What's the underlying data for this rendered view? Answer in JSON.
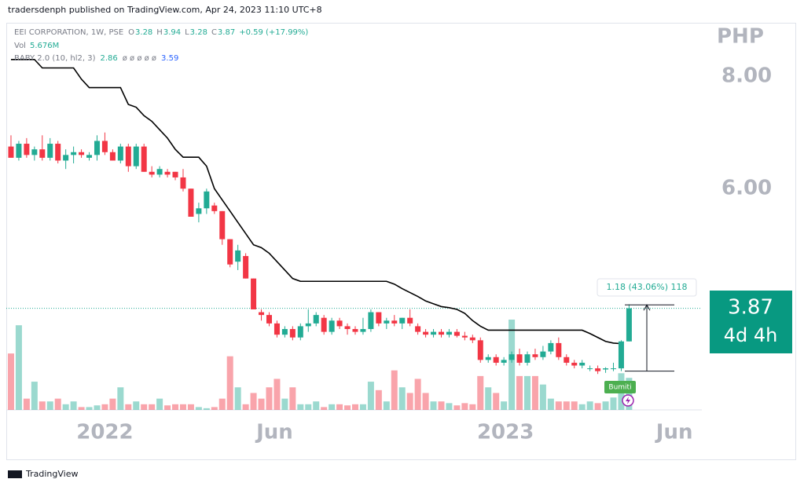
{
  "header": {
    "publisher": "tradersdenph published on TradingView.com, Apr 24, 2023 11:10 UTC+8"
  },
  "footer": {
    "brand": "TradingView"
  },
  "chart_data": {
    "type": "candlestick",
    "symbol": "EEI CORPORATION, 1W, PSE",
    "legend": [
      {
        "key": "O",
        "value": 3.28
      },
      {
        "key": "H",
        "value": 3.94
      },
      {
        "key": "L",
        "value": 3.28
      },
      {
        "key": "C",
        "value": 3.87
      }
    ],
    "change": "+0.59 (+17.99%)",
    "volume_legend": {
      "key": "Vol",
      "value": "5.676M"
    },
    "indicator_legend": {
      "name": "BABY 2.0 (10, hl2, 3)",
      "value": 2.86,
      "empty": "ø ø ø ø ø",
      "last": 3.59
    },
    "currency": "PHP",
    "up_color": "#22ab94",
    "down_color": "#f23645",
    "line_color": "#000000",
    "ylim": [
      2.06,
      8.94
    ],
    "yticks": [
      {
        "value": 6,
        "label": "6.00"
      },
      {
        "value": 8,
        "label": "8.00"
      }
    ],
    "xlim": [
      -0.6,
      88.3
    ],
    "xticks": [
      {
        "value": 12.0,
        "label": "2022"
      },
      {
        "value": 33.7,
        "label": "Jun"
      },
      {
        "value": 63.2,
        "label": "2023"
      },
      {
        "value": 84.8,
        "label": "Jun"
      }
    ],
    "candles": [
      [
        6.75,
        6.95,
        6.55,
        6.55
      ],
      [
        6.55,
        6.85,
        6.5,
        6.8
      ],
      [
        6.8,
        6.9,
        6.55,
        6.6
      ],
      [
        6.6,
        6.75,
        6.5,
        6.7
      ],
      [
        6.7,
        6.95,
        6.5,
        6.55
      ],
      [
        6.55,
        6.9,
        6.5,
        6.8
      ],
      [
        6.8,
        6.85,
        6.45,
        6.5
      ],
      [
        6.5,
        6.7,
        6.35,
        6.6
      ],
      [
        6.6,
        6.75,
        6.45,
        6.65
      ],
      [
        6.65,
        6.7,
        6.55,
        6.6
      ],
      [
        6.55,
        6.65,
        6.5,
        6.6
      ],
      [
        6.6,
        6.95,
        6.5,
        6.85
      ],
      [
        6.85,
        7.0,
        6.6,
        6.65
      ],
      [
        6.65,
        6.7,
        6.5,
        6.5
      ],
      [
        6.5,
        6.8,
        6.45,
        6.75
      ],
      [
        6.75,
        6.8,
        6.3,
        6.4
      ],
      [
        6.4,
        6.8,
        6.35,
        6.75
      ],
      [
        6.75,
        6.8,
        6.3,
        6.3
      ],
      [
        6.3,
        6.4,
        6.2,
        6.25
      ],
      [
        6.25,
        6.4,
        6.2,
        6.35
      ],
      [
        6.3,
        6.35,
        6.2,
        6.25
      ],
      [
        6.3,
        6.3,
        6.15,
        6.2
      ],
      [
        6.2,
        6.35,
        5.95,
        6.0
      ],
      [
        6.0,
        6.0,
        5.5,
        5.5
      ],
      [
        5.55,
        5.75,
        5.4,
        5.65
      ],
      [
        5.65,
        6.0,
        5.55,
        5.95
      ],
      [
        5.7,
        5.75,
        5.55,
        5.6
      ],
      [
        5.6,
        5.6,
        5.0,
        5.1
      ],
      [
        5.1,
        5.1,
        4.6,
        4.65
      ],
      [
        4.7,
        5.0,
        4.55,
        4.9
      ],
      [
        4.8,
        4.85,
        4.4,
        4.4
      ],
      [
        4.4,
        4.4,
        3.85,
        3.85
      ],
      [
        3.8,
        3.85,
        3.65,
        3.75
      ],
      [
        3.75,
        3.8,
        3.55,
        3.6
      ],
      [
        3.6,
        3.65,
        3.35,
        3.4
      ],
      [
        3.4,
        3.55,
        3.35,
        3.5
      ],
      [
        3.5,
        3.55,
        3.3,
        3.35
      ],
      [
        3.35,
        3.6,
        3.3,
        3.55
      ],
      [
        3.55,
        3.85,
        3.45,
        3.6
      ],
      [
        3.6,
        3.8,
        3.55,
        3.75
      ],
      [
        3.7,
        3.75,
        3.4,
        3.45
      ],
      [
        3.45,
        3.7,
        3.4,
        3.65
      ],
      [
        3.65,
        3.7,
        3.5,
        3.55
      ],
      [
        3.55,
        3.6,
        3.4,
        3.5
      ],
      [
        3.5,
        3.55,
        3.4,
        3.45
      ],
      [
        3.45,
        3.7,
        3.4,
        3.5
      ],
      [
        3.5,
        3.85,
        3.45,
        3.8
      ],
      [
        3.8,
        3.8,
        3.55,
        3.6
      ],
      [
        3.6,
        3.7,
        3.5,
        3.65
      ],
      [
        3.65,
        3.75,
        3.55,
        3.6
      ],
      [
        3.6,
        3.7,
        3.5,
        3.7
      ],
      [
        3.7,
        3.85,
        3.55,
        3.6
      ],
      [
        3.55,
        3.6,
        3.4,
        3.45
      ],
      [
        3.45,
        3.5,
        3.35,
        3.4
      ],
      [
        3.4,
        3.5,
        3.35,
        3.45
      ],
      [
        3.45,
        3.5,
        3.35,
        3.4
      ],
      [
        3.4,
        3.5,
        3.35,
        3.45
      ],
      [
        3.45,
        3.5,
        3.35,
        3.38
      ],
      [
        3.38,
        3.45,
        3.3,
        3.35
      ],
      [
        3.35,
        3.4,
        3.25,
        3.3
      ],
      [
        3.3,
        3.35,
        2.9,
        2.95
      ],
      [
        2.95,
        3.05,
        2.9,
        3.0
      ],
      [
        3.0,
        3.05,
        2.85,
        2.9
      ],
      [
        2.9,
        3.0,
        2.85,
        2.95
      ],
      [
        2.95,
        3.1,
        2.9,
        3.05
      ],
      [
        3.05,
        3.15,
        2.85,
        2.9
      ],
      [
        2.9,
        3.1,
        2.85,
        3.05
      ],
      [
        3.05,
        3.15,
        2.95,
        3.0
      ],
      [
        3.0,
        3.2,
        2.95,
        3.1
      ],
      [
        3.1,
        3.3,
        3.05,
        3.25
      ],
      [
        3.25,
        3.35,
        2.95,
        3.0
      ],
      [
        3.0,
        3.05,
        2.85,
        2.9
      ],
      [
        2.9,
        2.95,
        2.8,
        2.85
      ],
      [
        2.85,
        2.95,
        2.8,
        2.9
      ],
      [
        2.8,
        2.85,
        2.75,
        2.8
      ],
      [
        2.8,
        2.85,
        2.7,
        2.75
      ],
      [
        2.78,
        2.82,
        2.72,
        2.8
      ],
      [
        2.8,
        2.9,
        2.75,
        2.8
      ],
      [
        2.8,
        3.3,
        2.75,
        3.28
      ],
      [
        3.28,
        3.94,
        3.28,
        3.87
      ]
    ],
    "volume": [
      10,
      15,
      2,
      5,
      1.5,
      1.5,
      2,
      1,
      1.5,
      0.5,
      0.5,
      0.8,
      1,
      2,
      4,
      1,
      1.5,
      1,
      1,
      2,
      0.8,
      1,
      1,
      1,
      0.5,
      0.3,
      0.5,
      2,
      9.5,
      4,
      1,
      3,
      2,
      4,
      5.5,
      2,
      4,
      1,
      1,
      1.5,
      0.5,
      1,
      1,
      0.8,
      1,
      1,
      5,
      3.5,
      1.5,
      7,
      4,
      3,
      5.5,
      3,
      1.5,
      1.5,
      1.2,
      0.8,
      1.2,
      1,
      6,
      4,
      3,
      1.5,
      16,
      6,
      6,
      6,
      4.5,
      2,
      1.5,
      1.5,
      1.5,
      1,
      1.5,
      1.2,
      1.5,
      2.2,
      6.5,
      5.676
    ],
    "indicator": [
      8.3,
      8.3,
      8.3,
      8.3,
      8.15,
      8.15,
      8.15,
      8.15,
      8.15,
      7.95,
      7.8,
      7.8,
      7.8,
      7.8,
      7.8,
      7.5,
      7.45,
      7.3,
      7.2,
      7.05,
      6.9,
      6.7,
      6.56,
      6.56,
      6.56,
      6.4,
      6.0,
      5.8,
      5.6,
      5.4,
      5.2,
      5.0,
      4.95,
      4.85,
      4.7,
      4.55,
      4.4,
      4.35,
      4.35,
      4.35,
      4.35,
      4.35,
      4.35,
      4.35,
      4.35,
      4.35,
      4.35,
      4.35,
      4.35,
      4.3,
      4.22,
      4.15,
      4.08,
      4.0,
      3.95,
      3.9,
      3.88,
      3.85,
      3.78,
      3.65,
      3.55,
      3.48,
      3.48,
      3.48,
      3.48,
      3.48,
      3.48,
      3.48,
      3.48,
      3.48,
      3.48,
      3.48,
      3.48,
      3.48,
      3.42,
      3.35,
      3.28,
      3.25,
      3.24,
      null
    ],
    "last_price": 3.87,
    "countdown": "4d 4h",
    "measure": {
      "label": "1.18 (43.06%) 118",
      "from": 2.75,
      "to": 3.93
    },
    "marker": "Bumiti"
  }
}
